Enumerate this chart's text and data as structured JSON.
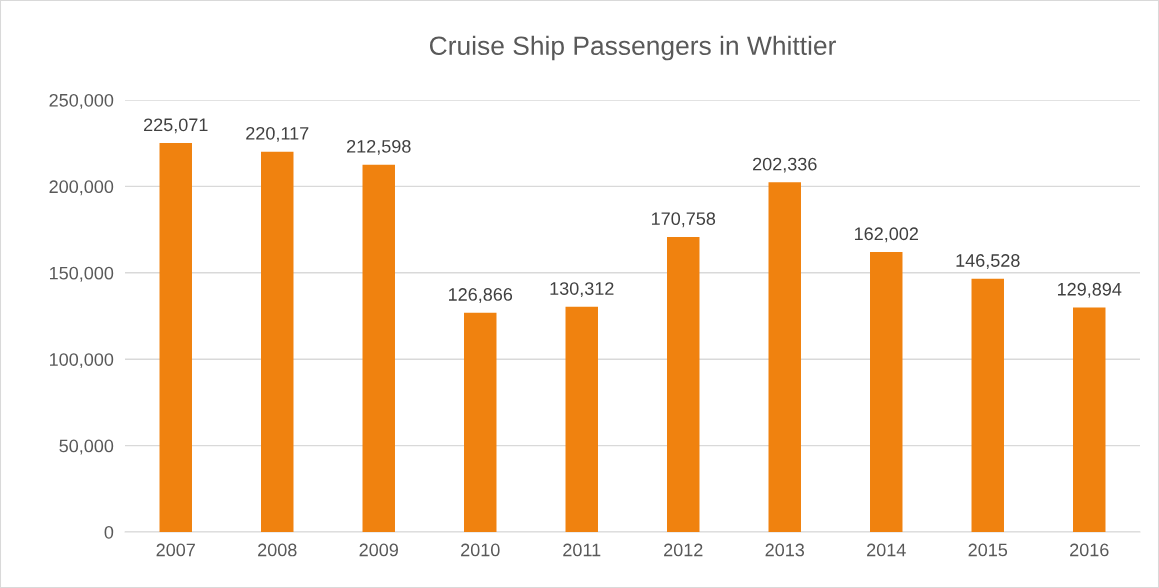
{
  "chart_data": {
    "type": "bar",
    "title": "Cruise Ship Passengers in Whittier",
    "categories": [
      "2007",
      "2008",
      "2009",
      "2010",
      "2011",
      "2012",
      "2013",
      "2014",
      "2015",
      "2016"
    ],
    "values": [
      225071,
      220117,
      212598,
      126866,
      130312,
      170758,
      202336,
      162002,
      146528,
      129894
    ],
    "value_labels": [
      "225,071",
      "220,117",
      "212,598",
      "126,866",
      "130,312",
      "170,758",
      "202,336",
      "162,002",
      "146,528",
      "129,894"
    ],
    "color": "#f0820f",
    "ylim": [
      0,
      250000
    ],
    "yticks": [
      0,
      {
        "value": 50000,
        "label": "50,000"
      },
      {
        "value": 100000,
        "label": "100,000"
      },
      {
        "value": 150000,
        "label": "150,000"
      },
      {
        "value": 200000,
        "label": "200,000"
      },
      {
        "value": 250000,
        "label": "250,000"
      }
    ],
    "grid": "y",
    "legend": false
  }
}
